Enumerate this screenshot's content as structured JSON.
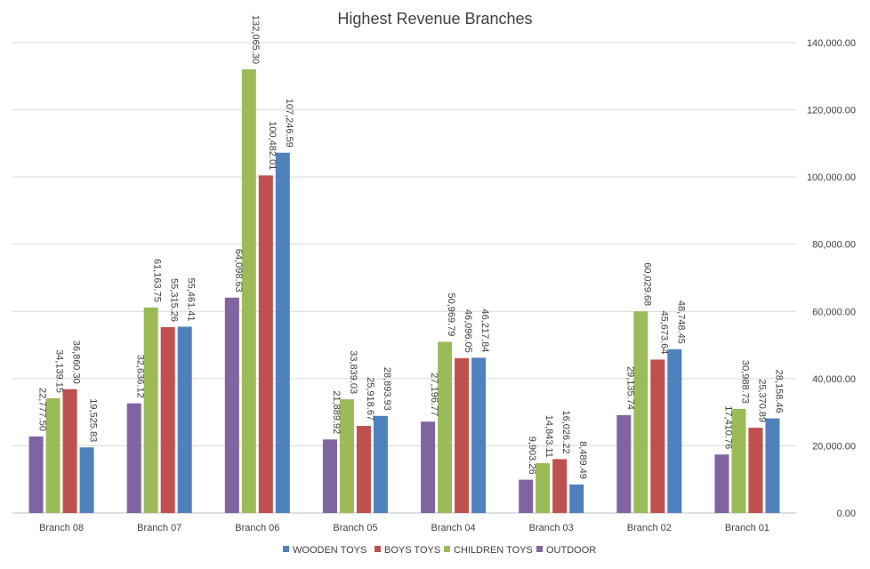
{
  "chart_data": {
    "type": "bar",
    "title": "Highest Revenue Branches",
    "xlabel": "",
    "ylabel": "",
    "categories": [
      "Branch 08",
      "Branch 07",
      "Branch 06",
      "Branch 05",
      "Branch 04",
      "Branch 03",
      "Branch 02",
      "Branch 01"
    ],
    "series": [
      {
        "name": "OUTDOOR",
        "color": "#8064A2",
        "values": [
          22777.5,
          32636.12,
          64098.63,
          21889.92,
          27196.77,
          9903.26,
          29135.74,
          17410.76
        ],
        "labels": [
          "22,777.50",
          "32,636.12",
          "64,098.63",
          "21,889.92",
          "27,196.77",
          "9,903.26",
          "29,135.74",
          "17,410.76"
        ]
      },
      {
        "name": "CHILDREN TOYS",
        "color": "#9BBB59",
        "values": [
          34139.15,
          61163.75,
          132065.3,
          33839.03,
          50969.79,
          14843.11,
          60029.68,
          30988.73
        ],
        "labels": [
          "34,139.15",
          "61,163.75",
          "132,065.30",
          "33,839.03",
          "50,969.79",
          "14,843.11",
          "60,029.68",
          "30,988.73"
        ]
      },
      {
        "name": "BOYS TOYS",
        "color": "#C0504D",
        "values": [
          36860.3,
          55315.26,
          100482.01,
          25918.67,
          46096.05,
          16026.22,
          45673.64,
          25370.89
        ],
        "labels": [
          "36,860.30",
          "55,315.26",
          "100,482.01",
          "25,918.67",
          "46,096.05",
          "16,026.22",
          "45,673.64",
          "25,370.89"
        ]
      },
      {
        "name": "WOODEN TOYS",
        "color": "#4F81BD",
        "values": [
          19525.83,
          55461.41,
          107246.59,
          28893.93,
          46217.84,
          8489.49,
          48748.45,
          28158.46
        ],
        "labels": [
          "19,525.83",
          "55,461.41",
          "107,246.59",
          "28,893.93",
          "46,217.84",
          "8,489.49",
          "48,748.45",
          "28,158.46"
        ]
      }
    ],
    "legend_order": [
      "WOODEN TOYS",
      "BOYS TOYS",
      "CHILDREN TOYS",
      "OUTDOOR"
    ],
    "y_ticks": [
      "0.00",
      "20,000.00",
      "40,000.00",
      "60,000.00",
      "80,000.00",
      "100,000.00",
      "120,000.00",
      "140,000.00"
    ],
    "ylim": [
      0,
      140000
    ],
    "y_axis_side": "right",
    "grid": true,
    "legend_position": "bottom"
  },
  "colors": {
    "gridline": "#D9D9D9",
    "axis": "#BFBFBF",
    "text": "#404040"
  }
}
